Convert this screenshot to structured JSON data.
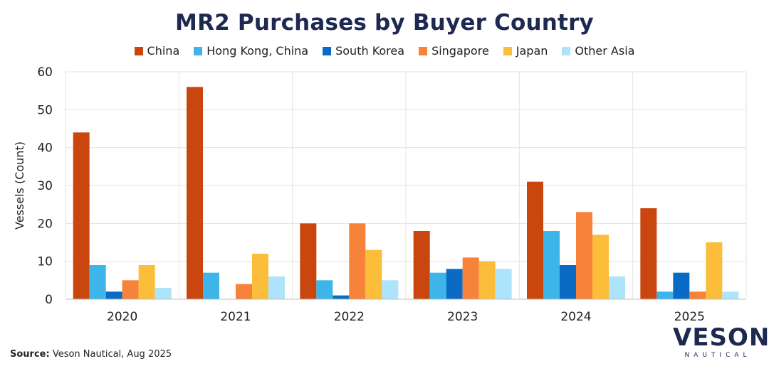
{
  "chart_data": {
    "type": "bar",
    "title": "MR2 Purchases by Buyer Country",
    "ylabel": "Vessels (Count)",
    "xlabel": "",
    "ylim": [
      0,
      60
    ],
    "yticks": [
      0,
      10,
      20,
      30,
      40,
      50,
      60
    ],
    "grid": true,
    "legend_position": "top",
    "categories": [
      "2020",
      "2021",
      "2022",
      "2023",
      "2024",
      "2025"
    ],
    "series": [
      {
        "name": "China",
        "color": "#c9470f",
        "values": [
          44,
          56,
          20,
          18,
          31,
          24
        ]
      },
      {
        "name": "Hong Kong, China",
        "color": "#3db5ea",
        "values": [
          9,
          7,
          5,
          7,
          18,
          2
        ]
      },
      {
        "name": "South Korea",
        "color": "#0a6bc4",
        "values": [
          2,
          0,
          1,
          8,
          9,
          7
        ]
      },
      {
        "name": "Singapore",
        "color": "#f7823a",
        "values": [
          5,
          4,
          20,
          11,
          23,
          2
        ]
      },
      {
        "name": "Japan",
        "color": "#fbbd3a",
        "values": [
          9,
          12,
          13,
          10,
          17,
          15
        ]
      },
      {
        "name": "Other Asia",
        "color": "#aee4fb",
        "values": [
          3,
          6,
          5,
          8,
          6,
          2
        ]
      }
    ]
  },
  "source": {
    "label": "Source:",
    "text": " Veson Nautical, Aug 2025"
  },
  "logo": {
    "main": "VESON",
    "sub": "NAUTICAL"
  }
}
